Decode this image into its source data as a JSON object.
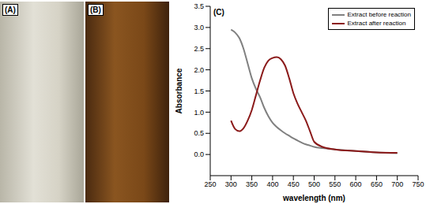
{
  "photos": {
    "labels": [
      "(A)",
      "(B)"
    ]
  },
  "chart_data": {
    "type": "line",
    "title": "(C)",
    "x_label": "wavelength (nm)",
    "y_label": "Absorbance",
    "x": [
      300,
      310,
      320,
      330,
      340,
      350,
      360,
      370,
      380,
      390,
      400,
      410,
      420,
      430,
      440,
      450,
      460,
      470,
      480,
      490,
      500,
      520,
      550,
      600,
      650,
      700
    ],
    "series": [
      {
        "name": "Extract before reaction",
        "color": "#808080",
        "values": [
          2.95,
          2.88,
          2.75,
          2.5,
          2.15,
          1.8,
          1.55,
          1.35,
          1.1,
          0.9,
          0.75,
          0.65,
          0.57,
          0.5,
          0.44,
          0.38,
          0.33,
          0.28,
          0.24,
          0.21,
          0.18,
          0.15,
          0.12,
          0.08,
          0.05,
          0.03
        ]
      },
      {
        "name": "Extract after reaction",
        "color": "#8b1a1a",
        "values": [
          0.8,
          0.6,
          0.55,
          0.62,
          0.8,
          1.05,
          1.4,
          1.75,
          2.05,
          2.22,
          2.28,
          2.3,
          2.25,
          2.1,
          1.8,
          1.45,
          1.2,
          1.0,
          0.8,
          0.55,
          0.3,
          0.18,
          0.12,
          0.08,
          0.05,
          0.04
        ]
      }
    ],
    "xlim": [
      250,
      750
    ],
    "xticks": [
      250,
      300,
      350,
      400,
      450,
      500,
      550,
      600,
      650,
      700,
      750
    ],
    "ylim": [
      -0.5,
      3.5
    ],
    "yticks": [
      {
        "value": 0,
        "label": "0.0"
      },
      0.5,
      {
        "value": 1,
        "label": "1.0"
      },
      1.5,
      {
        "value": 2,
        "label": "2.0"
      },
      2.5,
      {
        "value": 3,
        "label": "3.0"
      },
      3.5
    ],
    "grid": false,
    "legend": "top right"
  }
}
